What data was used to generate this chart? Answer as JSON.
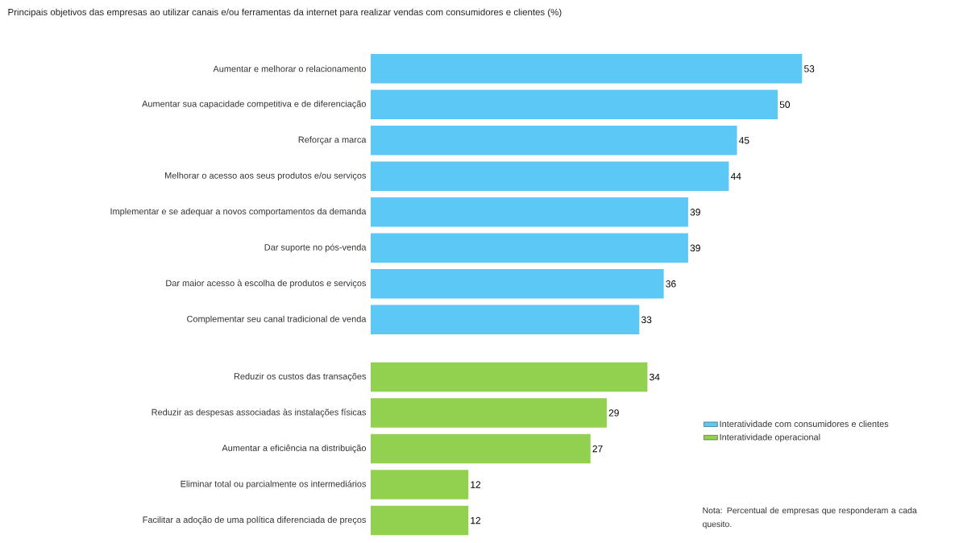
{
  "chart_data": {
    "type": "bar",
    "orientation": "horizontal",
    "title": "Principais objetivos das empresas ao utilizar canais e/ou ferramentas da internet para realizar vendas com consumidores e clientes (%)",
    "categories": [
      "Aumentar e melhorar o relacionamento",
      "Aumentar sua capacidade competitiva e de diferenciação",
      "Reforçar a marca",
      "Melhorar o acesso aos seus produtos e/ou serviços",
      "Implementar e se adequar a novos comportamentos da demanda",
      "Dar suporte no pós-venda",
      "Dar maior acesso à escolha de produtos e serviços",
      "Complementar seu canal tradicional de venda",
      "Reduzir os custos das transações",
      "Reduzir as despesas associadas às instalações físicas",
      "Aumentar a eficiência na distribuição",
      "Eliminar total ou parcialmente os intermediários",
      "Facilitar a adoção de uma política diferenciada de preços"
    ],
    "series": [
      {
        "name": "Interatividade com consumidores e clientes",
        "color": "#5bc8f5",
        "values": [
          53,
          50,
          45,
          44,
          39,
          39,
          36,
          33,
          null,
          null,
          null,
          null,
          null
        ]
      },
      {
        "name": "Interatividade operacional",
        "color": "#92d050",
        "values": [
          null,
          null,
          null,
          null,
          null,
          null,
          null,
          null,
          34,
          29,
          27,
          12,
          12
        ]
      }
    ],
    "data_labels": true,
    "legend": "bottom right",
    "annotations": [
      "Nota: Percentual de empresas que responderam a cada quesito."
    ]
  }
}
